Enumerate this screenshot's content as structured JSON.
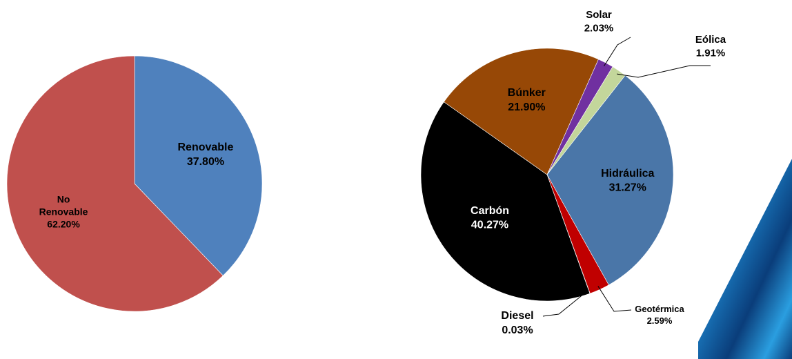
{
  "chart_data": [
    {
      "type": "pie",
      "slices": [
        {
          "label": "Renovable",
          "value": 37.8,
          "value_text": "37.80%",
          "color": "#4f81bd"
        },
        {
          "label": "No Renovable",
          "label_lines": [
            "No",
            "Renovable"
          ],
          "value": 62.2,
          "value_text": "62.20%",
          "color": "#c0504d"
        }
      ]
    },
    {
      "type": "pie",
      "slices": [
        {
          "label": "Hidráulica",
          "value": 31.27,
          "value_text": "31.27%",
          "color": "#4a76a8"
        },
        {
          "label": "Geotérmica",
          "value": 2.59,
          "value_text": "2.59%",
          "color": "#c00000"
        },
        {
          "label": "Diesel",
          "value": 0.03,
          "value_text": "0.03%",
          "color": "#7f7f7f"
        },
        {
          "label": "Carbón",
          "value": 40.27,
          "value_text": "40.27%",
          "color": "#000000"
        },
        {
          "label": "Búnker",
          "value": 21.9,
          "value_text": "21.90%",
          "color": "#974806"
        },
        {
          "label": "Solar",
          "value": 2.03,
          "value_text": "2.03%",
          "color": "#7030a0"
        },
        {
          "label": "Eólica",
          "value": 1.91,
          "value_text": "1.91%",
          "color": "#c3d69b"
        }
      ]
    }
  ],
  "decoration": {
    "accent_colors": [
      "#0a3d7a",
      "#1e88d0",
      "#37b4f0"
    ]
  }
}
